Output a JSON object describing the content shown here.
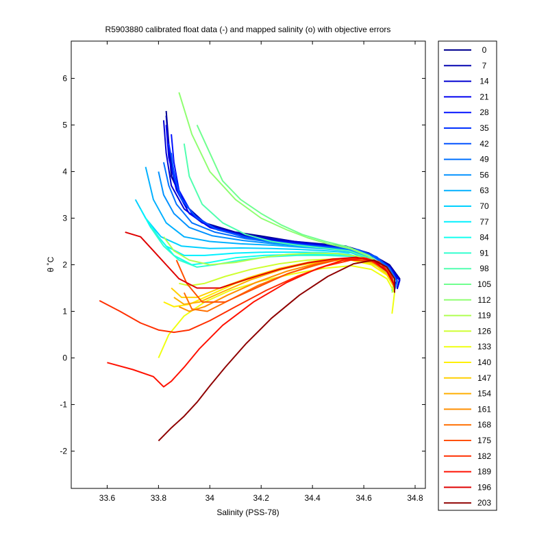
{
  "chart_data": {
    "type": "line",
    "title": "R5903880 calibrated float data (-) and mapped salinity (o) with objective errors",
    "xlabel": "Salinity (PSS-78)",
    "ylabel": "θ ˚C",
    "xlim": [
      33.46,
      34.84
    ],
    "ylim": [
      -2.8,
      6.8
    ],
    "xticks": [
      33.6,
      33.8,
      34,
      34.2,
      34.4,
      34.6,
      34.8
    ],
    "xtick_labels": [
      "33.6",
      "33.8",
      "34",
      "34.2",
      "34.4",
      "34.6",
      "34.8"
    ],
    "yticks": [
      -2,
      -1,
      0,
      1,
      2,
      3,
      4,
      5,
      6
    ],
    "ytick_labels": [
      "-2",
      "-1",
      "0",
      "1",
      "2",
      "3",
      "4",
      "5",
      "6"
    ],
    "grid": false,
    "legend_position": "outside-right",
    "series": [
      {
        "name": "0",
        "color": "#00008f",
        "x": [
          33.83,
          33.84,
          33.85,
          33.9,
          33.98,
          34.1,
          34.22,
          34.33,
          34.43,
          34.53,
          34.62,
          34.7,
          34.74,
          34.73
        ],
        "y": [
          5.3,
          4.6,
          3.9,
          3.3,
          2.9,
          2.7,
          2.6,
          2.5,
          2.45,
          2.4,
          2.25,
          2.0,
          1.7,
          1.5
        ]
      },
      {
        "name": "7",
        "color": "#0000b0",
        "x": [
          33.83,
          33.84,
          33.86,
          33.91,
          33.99,
          34.11,
          34.23,
          34.34,
          34.44,
          34.54,
          34.63,
          34.7,
          34.74,
          34.73
        ],
        "y": [
          5.2,
          4.5,
          3.8,
          3.25,
          2.85,
          2.65,
          2.55,
          2.48,
          2.42,
          2.37,
          2.22,
          1.98,
          1.68,
          1.5
        ]
      },
      {
        "name": "14",
        "color": "#0000d0",
        "x": [
          33.82,
          33.83,
          33.85,
          33.9,
          33.97,
          34.09,
          34.21,
          34.33,
          34.43,
          34.53,
          34.62,
          34.69,
          34.73,
          34.72
        ],
        "y": [
          5.1,
          4.4,
          3.7,
          3.2,
          2.9,
          2.7,
          2.58,
          2.5,
          2.44,
          2.38,
          2.24,
          2.0,
          1.72,
          1.5
        ]
      },
      {
        "name": "21",
        "color": "#0000f0",
        "x": [
          33.83,
          33.84,
          33.87,
          33.92,
          34.0,
          34.12,
          34.24,
          34.35,
          34.45,
          34.55,
          34.63,
          34.7,
          34.74,
          34.73
        ],
        "y": [
          5.0,
          4.3,
          3.6,
          3.1,
          2.8,
          2.62,
          2.52,
          2.46,
          2.4,
          2.35,
          2.2,
          1.96,
          1.66,
          1.48
        ]
      },
      {
        "name": "28",
        "color": "#0010ff",
        "x": [
          33.85,
          33.86,
          33.88,
          33.93,
          34.01,
          34.13,
          34.25,
          34.36,
          34.46,
          34.56,
          34.64,
          34.7,
          34.73,
          34.72
        ],
        "y": [
          4.8,
          4.2,
          3.6,
          3.1,
          2.8,
          2.6,
          2.5,
          2.44,
          2.39,
          2.34,
          2.19,
          1.95,
          1.66,
          1.48
        ]
      },
      {
        "name": "35",
        "color": "#0030ff",
        "x": [
          33.84,
          33.86,
          33.88,
          33.94,
          34.02,
          34.14,
          34.26,
          34.37,
          34.47,
          34.57,
          34.64,
          34.7,
          34.73,
          34.72
        ],
        "y": [
          4.6,
          4.0,
          3.5,
          3.05,
          2.78,
          2.6,
          2.5,
          2.43,
          2.38,
          2.33,
          2.18,
          1.94,
          1.65,
          1.47
        ]
      },
      {
        "name": "42",
        "color": "#0050ff",
        "x": [
          33.85,
          33.86,
          33.89,
          33.95,
          34.03,
          34.15,
          34.27,
          34.38,
          34.48,
          34.58,
          34.65,
          34.7,
          34.73,
          34.72
        ],
        "y": [
          4.4,
          3.9,
          3.4,
          3.0,
          2.75,
          2.58,
          2.48,
          2.42,
          2.37,
          2.32,
          2.17,
          1.93,
          1.64,
          1.47
        ]
      },
      {
        "name": "49",
        "color": "#0070ff",
        "x": [
          33.82,
          33.84,
          33.87,
          33.93,
          34.02,
          34.14,
          34.26,
          34.37,
          34.47,
          34.57,
          34.64,
          34.7,
          34.73,
          34.72
        ],
        "y": [
          4.2,
          3.7,
          3.3,
          2.9,
          2.7,
          2.56,
          2.47,
          2.41,
          2.36,
          2.31,
          2.16,
          1.92,
          1.63,
          1.46
        ]
      },
      {
        "name": "56",
        "color": "#0090ff",
        "x": [
          33.8,
          33.82,
          33.86,
          33.92,
          34.01,
          34.13,
          34.25,
          34.36,
          34.46,
          34.56,
          34.63,
          34.69,
          34.72,
          34.71
        ],
        "y": [
          4.0,
          3.5,
          3.1,
          2.8,
          2.62,
          2.52,
          2.45,
          2.4,
          2.35,
          2.3,
          2.15,
          1.92,
          1.63,
          1.46
        ]
      },
      {
        "name": "63",
        "color": "#00b0ff",
        "x": [
          33.75,
          33.78,
          33.83,
          33.9,
          34.0,
          34.12,
          34.24,
          34.35,
          34.45,
          34.55,
          34.63,
          34.69,
          34.72,
          34.71
        ],
        "y": [
          4.1,
          3.4,
          2.9,
          2.6,
          2.5,
          2.45,
          2.42,
          2.38,
          2.34,
          2.29,
          2.14,
          1.91,
          1.62,
          1.45
        ]
      },
      {
        "name": "70",
        "color": "#00d0ff",
        "x": [
          33.71,
          33.75,
          33.81,
          33.89,
          34.0,
          34.12,
          34.24,
          34.35,
          34.45,
          34.55,
          34.62,
          34.68,
          34.72,
          34.71
        ],
        "y": [
          3.4,
          3.0,
          2.6,
          2.4,
          2.35,
          2.36,
          2.35,
          2.33,
          2.3,
          2.26,
          2.12,
          1.9,
          1.62,
          1.45
        ]
      },
      {
        "name": "77",
        "color": "#00f0ff",
        "x": [
          33.73,
          33.77,
          33.83,
          33.9,
          33.98,
          34.1,
          34.22,
          34.34,
          34.44,
          34.54,
          34.62,
          34.68,
          34.72,
          34.71
        ],
        "y": [
          3.2,
          2.8,
          2.4,
          2.2,
          2.2,
          2.25,
          2.27,
          2.27,
          2.26,
          2.23,
          2.1,
          1.89,
          1.61,
          1.44
        ]
      },
      {
        "name": "84",
        "color": "#10ffef",
        "x": [
          33.75,
          33.8,
          33.86,
          33.93,
          34.0,
          34.1,
          34.21,
          34.33,
          34.44,
          34.54,
          34.62,
          34.68,
          34.72,
          34.71
        ],
        "y": [
          3.0,
          2.6,
          2.2,
          2.0,
          2.05,
          2.15,
          2.2,
          2.22,
          2.22,
          2.2,
          2.08,
          1.88,
          1.6,
          1.44
        ]
      },
      {
        "name": "91",
        "color": "#30ffcf",
        "x": [
          33.77,
          33.82,
          33.88,
          33.95,
          34.02,
          34.12,
          34.23,
          34.34,
          34.45,
          34.55,
          34.62,
          34.68,
          34.72,
          34.71
        ],
        "y": [
          2.8,
          2.4,
          2.1,
          1.95,
          2.0,
          2.1,
          2.17,
          2.2,
          2.2,
          2.18,
          2.07,
          1.87,
          1.6,
          1.43
        ]
      },
      {
        "name": "98",
        "color": "#50ffaf",
        "x": [
          33.9,
          33.92,
          33.97,
          34.05,
          34.14,
          34.24,
          34.34,
          34.44,
          34.54,
          34.62,
          34.68,
          34.72,
          34.71
        ],
        "y": [
          4.6,
          3.9,
          3.3,
          2.9,
          2.65,
          2.5,
          2.42,
          2.36,
          2.3,
          2.14,
          1.92,
          1.62,
          1.45
        ]
      },
      {
        "name": "105",
        "color": "#70ff8f",
        "x": [
          33.95,
          34.0,
          34.05,
          34.12,
          34.2,
          34.28,
          34.36,
          34.45,
          34.54,
          34.62,
          34.68,
          34.72,
          34.71
        ],
        "y": [
          5.0,
          4.4,
          3.8,
          3.4,
          3.1,
          2.85,
          2.65,
          2.5,
          2.38,
          2.2,
          1.95,
          1.64,
          1.46
        ]
      },
      {
        "name": "112",
        "color": "#8fff70",
        "x": [
          33.88,
          33.93,
          34.0,
          34.1,
          34.2,
          34.3,
          34.38,
          34.46,
          34.55,
          34.62,
          34.68,
          34.72,
          34.71
        ],
        "y": [
          5.7,
          4.8,
          4.0,
          3.4,
          3.0,
          2.75,
          2.58,
          2.45,
          2.34,
          2.18,
          1.94,
          1.63,
          1.46
        ]
      },
      {
        "name": "119",
        "color": "#afff50",
        "x": [
          33.82,
          33.86,
          33.92,
          34.0,
          34.1,
          34.2,
          34.3,
          34.4,
          34.5,
          34.58,
          34.65,
          34.7,
          34.72,
          34.71
        ],
        "y": [
          2.6,
          2.3,
          2.1,
          2.0,
          2.05,
          2.15,
          2.22,
          2.25,
          2.24,
          2.18,
          2.02,
          1.8,
          1.55,
          1.4
        ]
      },
      {
        "name": "126",
        "color": "#cfff30",
        "x": [
          33.88,
          33.92,
          33.98,
          34.06,
          34.16,
          34.27,
          34.38,
          34.48,
          34.58,
          34.65,
          34.7,
          34.72
        ],
        "y": [
          1.6,
          1.55,
          1.6,
          1.75,
          1.9,
          2.02,
          2.1,
          2.12,
          2.1,
          1.98,
          1.75,
          1.5
        ]
      },
      {
        "name": "133",
        "color": "#efff10",
        "x": [
          33.8,
          33.84,
          33.9,
          33.98,
          34.08,
          34.2,
          34.32,
          34.44,
          34.55,
          34.63,
          34.69,
          34.72,
          34.71
        ],
        "y": [
          0.0,
          0.5,
          0.9,
          1.2,
          1.45,
          1.65,
          1.8,
          1.92,
          1.98,
          1.9,
          1.7,
          1.4,
          0.95
        ]
      },
      {
        "name": "140",
        "color": "#ffef00",
        "x": [
          33.82,
          33.86,
          33.92,
          34.0,
          34.1,
          34.22,
          34.34,
          34.45,
          34.55,
          34.63,
          34.69,
          34.72
        ],
        "y": [
          1.2,
          1.1,
          1.15,
          1.35,
          1.6,
          1.82,
          1.98,
          2.08,
          2.1,
          2.0,
          1.78,
          1.5
        ]
      },
      {
        "name": "147",
        "color": "#ffcf00",
        "x": [
          33.85,
          33.89,
          33.95,
          34.04,
          34.15,
          34.27,
          34.38,
          34.48,
          34.57,
          34.64,
          34.69,
          34.72
        ],
        "y": [
          1.5,
          1.3,
          1.3,
          1.5,
          1.72,
          1.92,
          2.05,
          2.13,
          2.12,
          2.02,
          1.8,
          1.5
        ]
      },
      {
        "name": "154",
        "color": "#ffaf00",
        "x": [
          33.86,
          33.9,
          33.96,
          34.05,
          34.16,
          34.28,
          34.39,
          34.49,
          34.58,
          34.65,
          34.7,
          34.72
        ],
        "y": [
          1.3,
          1.15,
          1.2,
          1.42,
          1.68,
          1.9,
          2.04,
          2.12,
          2.12,
          2.02,
          1.8,
          1.5
        ]
      },
      {
        "name": "161",
        "color": "#ff8f00",
        "x": [
          33.88,
          33.92,
          33.98,
          34.07,
          34.18,
          34.3,
          34.41,
          34.5,
          34.59,
          34.65,
          34.7,
          34.72
        ],
        "y": [
          1.1,
          1.0,
          1.1,
          1.35,
          1.62,
          1.86,
          2.02,
          2.12,
          2.14,
          2.04,
          1.8,
          1.5
        ]
      },
      {
        "name": "168",
        "color": "#ff6f00",
        "x": [
          33.9,
          33.93,
          33.99,
          34.08,
          34.19,
          34.31,
          34.42,
          34.51,
          34.6,
          34.66,
          34.7,
          34.72
        ],
        "y": [
          1.4,
          1.05,
          1.0,
          1.25,
          1.56,
          1.82,
          2.0,
          2.12,
          2.15,
          2.05,
          1.82,
          1.52
        ]
      },
      {
        "name": "175",
        "color": "#ff5000",
        "x": [
          33.87,
          33.91,
          33.97,
          34.06,
          34.18,
          34.3,
          34.41,
          34.51,
          34.6,
          34.66,
          34.7,
          34.72
        ],
        "y": [
          2.1,
          1.6,
          1.2,
          1.2,
          1.5,
          1.8,
          2.0,
          2.12,
          2.15,
          2.06,
          1.84,
          1.54
        ]
      },
      {
        "name": "182",
        "color": "#ff2f00",
        "x": [
          33.57,
          33.65,
          33.73,
          33.8,
          33.86,
          33.92,
          34.0,
          34.1,
          34.22,
          34.34,
          34.45,
          34.55,
          34.63,
          34.69,
          34.72
        ],
        "y": [
          1.23,
          1.0,
          0.75,
          0.6,
          0.55,
          0.6,
          0.8,
          1.1,
          1.45,
          1.75,
          1.97,
          2.1,
          2.08,
          1.86,
          1.55
        ]
      },
      {
        "name": "189",
        "color": "#ff1000",
        "x": [
          33.6,
          33.7,
          33.78,
          33.82,
          33.85,
          33.9,
          33.96,
          34.05,
          34.17,
          34.3,
          34.42,
          34.52,
          34.61,
          34.67,
          34.71,
          34.72
        ],
        "y": [
          -0.1,
          -0.25,
          -0.4,
          -0.62,
          -0.5,
          -0.2,
          0.2,
          0.7,
          1.2,
          1.62,
          1.92,
          2.1,
          2.14,
          2.0,
          1.72,
          1.5
        ]
      },
      {
        "name": "196",
        "color": "#df0000",
        "x": [
          33.67,
          33.73,
          33.78,
          33.83,
          33.88,
          33.95,
          34.04,
          34.15,
          34.27,
          34.38,
          34.48,
          34.57,
          34.64,
          34.69,
          34.72
        ],
        "y": [
          2.7,
          2.6,
          2.3,
          2.0,
          1.7,
          1.5,
          1.5,
          1.7,
          1.9,
          2.04,
          2.12,
          2.16,
          2.08,
          1.86,
          1.55
        ]
      },
      {
        "name": "203",
        "color": "#8f0000",
        "x": [
          33.8,
          33.85,
          33.9,
          33.95,
          34.0,
          34.06,
          34.14,
          34.24,
          34.35,
          34.46,
          34.56,
          34.64,
          34.69,
          34.72,
          34.72
        ],
        "y": [
          -1.78,
          -1.5,
          -1.25,
          -0.95,
          -0.6,
          -0.2,
          0.3,
          0.85,
          1.35,
          1.75,
          2.02,
          2.1,
          1.95,
          1.7,
          1.4
        ]
      }
    ]
  }
}
